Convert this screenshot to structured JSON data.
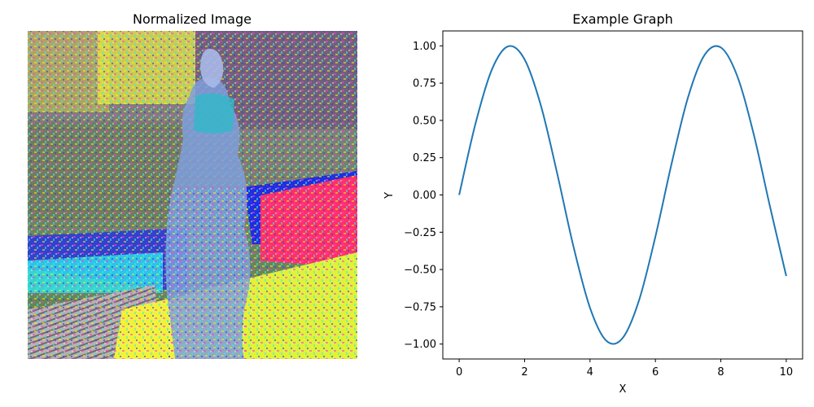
{
  "image_panel": {
    "title": "Normalized Image"
  },
  "chart_data": {
    "type": "line",
    "title": "Example Graph",
    "xlabel": "X",
    "ylabel": "Y",
    "xlim": [
      -0.5,
      10.5
    ],
    "ylim": [
      -1.1,
      1.1
    ],
    "xticks": [
      0,
      2,
      4,
      6,
      8,
      10
    ],
    "xtick_labels": [
      "0",
      "2",
      "4",
      "6",
      "8",
      "10"
    ],
    "yticks": [
      -1.0,
      -0.75,
      -0.5,
      -0.25,
      0.0,
      0.25,
      0.5,
      0.75,
      1.0
    ],
    "ytick_labels": [
      "−1.00",
      "−0.75",
      "−0.50",
      "−0.25",
      "0.00",
      "0.25",
      "0.50",
      "0.75",
      "1.00"
    ],
    "grid": false,
    "series": [
      {
        "color": "#1f77b4",
        "x": [
          0,
          0.5,
          1,
          1.5,
          2,
          2.5,
          3,
          3.5,
          4,
          4.5,
          5,
          5.5,
          6,
          6.5,
          7,
          7.5,
          8,
          8.5,
          9,
          9.5,
          10
        ],
        "y": [
          0.0,
          0.479,
          0.841,
          0.997,
          0.909,
          0.598,
          0.141,
          -0.351,
          -0.757,
          -0.978,
          -0.959,
          -0.706,
          -0.279,
          0.215,
          0.657,
          0.938,
          0.989,
          0.798,
          0.412,
          -0.075,
          -0.544
        ]
      }
    ]
  }
}
